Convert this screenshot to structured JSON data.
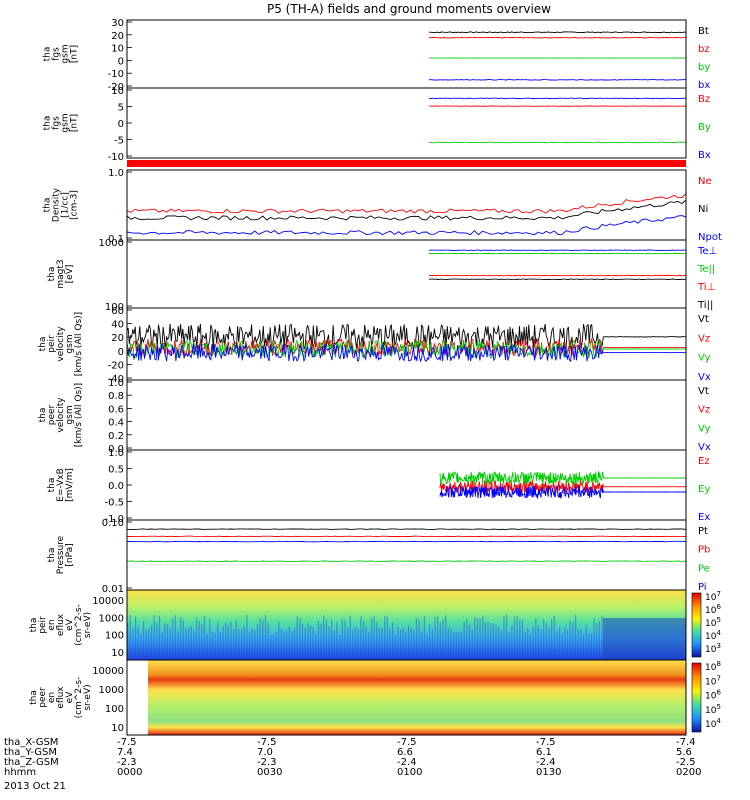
{
  "chart_data": {
    "type": "line",
    "title": "P5 (TH-A) fields and ground moments overview",
    "x_range_label": "hhmm",
    "footer": {
      "rows": [
        {
          "label": "tha_X-GSM",
          "values": [
            "-7.5",
            "-7.5",
            "-7.5",
            "-7.5",
            "-7.4"
          ]
        },
        {
          "label": "tha_Y-GSM",
          "values": [
            "7.4",
            "7.0",
            "6.6",
            "6.1",
            "5.6"
          ]
        },
        {
          "label": "tha_Z-GSM",
          "values": [
            "-2.3",
            "-2.3",
            "-2.4",
            "-2.4",
            "-2.5"
          ]
        },
        {
          "label": "hhmm",
          "values": [
            "0000",
            "0030",
            "0100",
            "0130",
            "0200"
          ]
        }
      ],
      "date": "2013 Oct 21"
    },
    "panels": [
      {
        "ylabel": [
          "tha",
          "fgs",
          "gsm",
          "[nT]"
        ],
        "yticks": [
          "30",
          "20",
          "10",
          "0",
          "-10",
          "-20"
        ],
        "ylim": [
          -20,
          30
        ],
        "series": [
          {
            "name": "Bt",
            "color": "#000000",
            "start": 0.54,
            "value": 21
          },
          {
            "name": "bz",
            "color": "#ff0000",
            "start": 0.54,
            "value": 17
          },
          {
            "name": "by",
            "color": "#00cc00",
            "start": 0.54,
            "value": 2
          },
          {
            "name": "bx",
            "color": "#0000ff",
            "start": 0.54,
            "value": -14
          }
        ]
      },
      {
        "ylabel": [
          "tha",
          "fgs",
          "gsm",
          "[nT]"
        ],
        "yticks": [
          "10",
          "5",
          "0",
          "-5",
          "-10"
        ],
        "ylim": [
          -15,
          12
        ],
        "series": [
          {
            "name": "Bz",
            "color": "#ff0000",
            "start": 0.54,
            "value": 5
          },
          {
            "name": "By",
            "color": "#00cc00",
            "start": 0.54,
            "value": -9
          },
          {
            "name": "Bx",
            "color": "#0000ff",
            "start": 0.54,
            "value": 8
          }
        ]
      },
      {
        "ylabel": [
          "tha",
          "Density",
          "[1/cc]",
          "[cm-3]"
        ],
        "yticks": [
          "1.0",
          "0.1"
        ],
        "ylim": [
          0.1,
          1.2
        ],
        "log": true,
        "series": [
          {
            "name": "Ne",
            "color": "#ff0000",
            "start": 0.0,
            "value": 0.28
          },
          {
            "name": "Ni",
            "color": "#000000",
            "start": 0.0,
            "value": 0.22
          },
          {
            "name": "Npot",
            "color": "#0000ff",
            "start": 0.0,
            "value": 0.13
          }
        ]
      },
      {
        "ylabel": [
          "tha",
          "magt3",
          "[eV]"
        ],
        "yticks": [
          "1000",
          "100"
        ],
        "ylim": [
          100,
          10000
        ],
        "log": true,
        "series": [
          {
            "name": "Te⊥",
            "color": "#0000ff",
            "start": 0.54,
            "value": 5000
          },
          {
            "name": "Te||",
            "color": "#00cc00",
            "start": 0.54,
            "value": 4000
          },
          {
            "name": "Ti⊥",
            "color": "#ff0000",
            "start": 0.54,
            "value": 900
          },
          {
            "name": "Ti||",
            "color": "#000000",
            "start": 0.54,
            "value": 700
          }
        ]
      },
      {
        "ylabel": [
          "tha",
          "peir",
          "velocity",
          "gsm",
          "[km/s (All Qs)]"
        ],
        "yticks": [
          "60",
          "40",
          "20",
          "0",
          "-20",
          "-40"
        ],
        "ylim": [
          -40,
          60
        ],
        "series": [
          {
            "name": "Vt",
            "color": "#000000",
            "start": 0.0,
            "value": 20
          },
          {
            "name": "Vz",
            "color": "#ff0000",
            "start": 0.0,
            "value": 5
          },
          {
            "name": "Vy",
            "color": "#00cc00",
            "start": 0.0,
            "value": 3
          },
          {
            "name": "Vx",
            "color": "#0000ff",
            "start": 0.0,
            "value": -2
          }
        ]
      },
      {
        "ylabel": [
          "tha",
          "peer",
          "velocity",
          "gsm",
          "[km/s (All Qs)]"
        ],
        "yticks": [
          "1.0",
          "0.8",
          "0.6",
          "0.4",
          "0.2",
          "0.0"
        ],
        "ylim": [
          0,
          1
        ],
        "series": [
          {
            "name": "Vt",
            "color": "#000000"
          },
          {
            "name": "Vz",
            "color": "#ff0000"
          },
          {
            "name": "Vy",
            "color": "#00cc00"
          },
          {
            "name": "Vx",
            "color": "#0000ff"
          }
        ]
      },
      {
        "ylabel": [
          "tha",
          "E=-VxB",
          "[mV/m]"
        ],
        "yticks": [
          "1.0",
          "0.5",
          "0.0",
          "-0.5",
          "-1.0"
        ],
        "ylim": [
          -1,
          1
        ],
        "series": [
          {
            "name": "Ez",
            "color": "#ff0000",
            "start": 0.56,
            "value": -0.05
          },
          {
            "name": "Ey",
            "color": "#00cc00",
            "start": 0.56,
            "value": 0.2
          },
          {
            "name": "Ex",
            "color": "#0000ff",
            "start": 0.56,
            "value": -0.2
          }
        ]
      },
      {
        "ylabel": [
          "tha",
          "Pressure",
          "[nPa]"
        ],
        "yticks": [
          "0.10",
          "0.01"
        ],
        "ylim": [
          0.01,
          0.5
        ],
        "log": true,
        "series": [
          {
            "name": "Pt",
            "color": "#000000",
            "value": 0.3
          },
          {
            "name": "Pb",
            "color": "#ff0000",
            "value": 0.2
          },
          {
            "name": "Pe",
            "color": "#00cc00",
            "value": 0.05
          },
          {
            "name": "Pi",
            "color": "#0000ff",
            "value": 0.15
          }
        ]
      },
      {
        "type": "heatmap",
        "ylabel": [
          "tha",
          "peir",
          "en",
          "eflux",
          "eV",
          "(cm^2-s-",
          "sr-eV)"
        ],
        "yticks": [
          "10000",
          "1000",
          "100",
          "10"
        ],
        "colorbar_ticks": [
          "10^7",
          "10^6",
          "10^5",
          "10^4",
          "10^3"
        ]
      },
      {
        "type": "heatmap",
        "ylabel": [
          "tha",
          "peer",
          "en",
          "eflux",
          "eV",
          "(cm^2-s-",
          "sr-eV)"
        ],
        "yticks": [
          "10000",
          "1000",
          "100",
          "10"
        ],
        "colorbar_ticks": [
          "10^8",
          "10^7",
          "10^6",
          "10^5",
          "10^4"
        ]
      }
    ]
  }
}
